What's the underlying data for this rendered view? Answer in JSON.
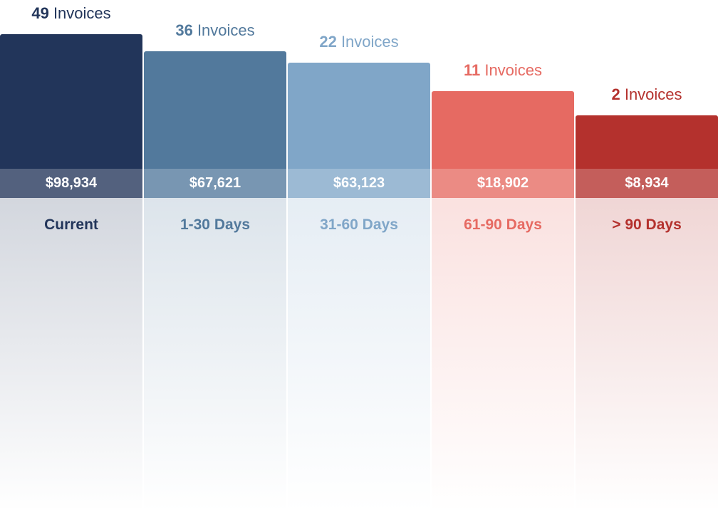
{
  "columns": [
    {
      "count": 49,
      "unit": "Invoices",
      "amount": "$98,934",
      "label": "Current",
      "color": "#22355a"
    },
    {
      "count": 36,
      "unit": "Invoices",
      "amount": "$67,621",
      "label": "1-30 Days",
      "color": "#52799c"
    },
    {
      "count": 22,
      "unit": "Invoices",
      "amount": "$63,123",
      "label": "31-60 Days",
      "color": "#80a6c8"
    },
    {
      "count": 11,
      "unit": "Invoices",
      "amount": "$18,902",
      "label": "61-90 Days",
      "color": "#e66a62"
    },
    {
      "count": 2,
      "unit": "Invoices",
      "amount": "$8,934",
      "label": "> 90 Days",
      "color": "#b4312d"
    }
  ]
}
